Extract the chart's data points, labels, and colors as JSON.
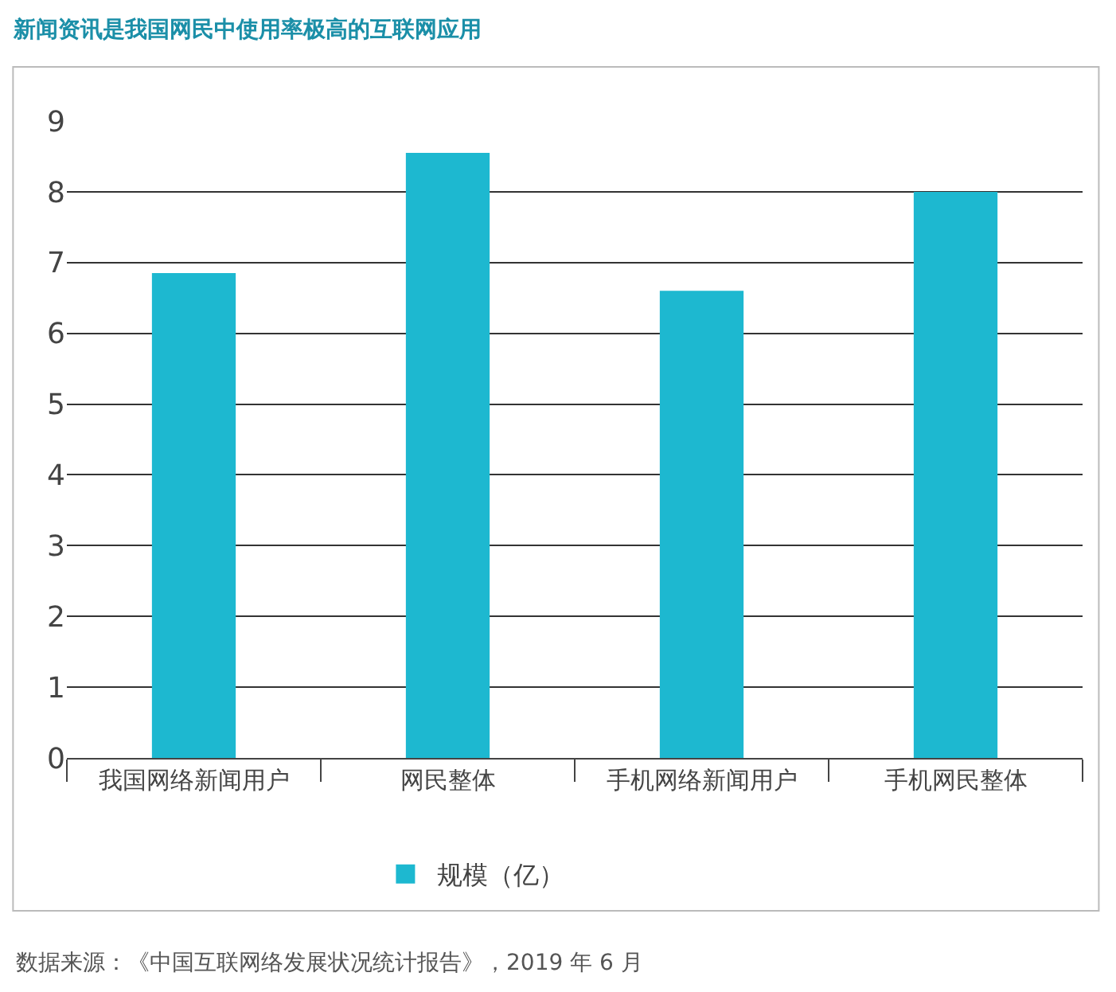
{
  "chart_data": {
    "type": "bar",
    "title": "新闻资讯是我国网民中使用率极高的互联网应用",
    "categories": [
      "我国网络新闻用户",
      "网民整体",
      "手机网络新闻用户",
      "手机网民整体"
    ],
    "series": [
      {
        "name": "规模（亿）",
        "color": "#1db8d0",
        "values": [
          6.85,
          8.55,
          6.6,
          8.0
        ]
      }
    ],
    "ylim": [
      0,
      9
    ],
    "yticks": [
      0,
      1,
      2,
      3,
      4,
      5,
      6,
      7,
      8,
      9
    ],
    "grid": "y",
    "legend": "bottom",
    "annotations": [
      "数据来源：《中国互联网络发展状况统计报告》，2019 年 6 月"
    ]
  }
}
